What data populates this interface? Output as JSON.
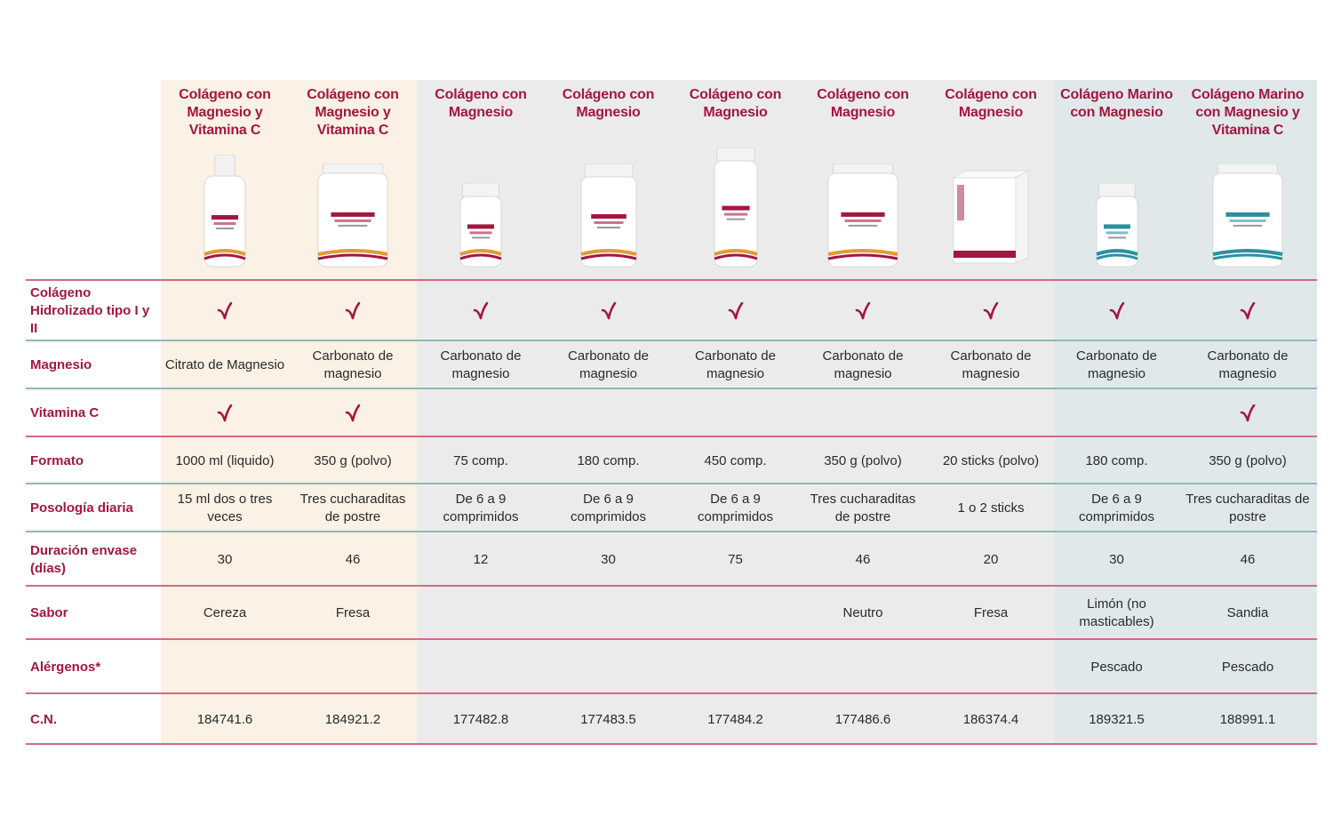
{
  "colors": {
    "accent": "#a3173e",
    "band_warm": "#fbf1e4",
    "band_gray": "#ebebeb",
    "band_blue": "#e0e8ea",
    "line_rose": "#d06c86",
    "line_teal": "#8fb9b8"
  },
  "columns": [
    {
      "title": "Colágeno con Magnesio y Vitamina C",
      "product": {
        "type": "bottle",
        "accent": "#a3173e",
        "label": "COLÁGENO"
      }
    },
    {
      "title": "Colágeno con Magnesio y Vitamina C",
      "product": {
        "type": "tub",
        "accent": "#a3173e",
        "label": "COLÁGENO"
      }
    },
    {
      "title": "Colágeno con Magnesio",
      "product": {
        "type": "small-jar",
        "accent": "#a3173e",
        "label": "COLÁGENO"
      }
    },
    {
      "title": "Colágeno con Magnesio",
      "product": {
        "type": "jar",
        "accent": "#a3173e",
        "label": "COLÁGENO"
      }
    },
    {
      "title": "Colágeno con Magnesio",
      "product": {
        "type": "tall-jar",
        "accent": "#a3173e",
        "label": "COLÁGENO"
      }
    },
    {
      "title": "Colágeno con Magnesio",
      "product": {
        "type": "tub",
        "accent": "#a3173e",
        "label": "COLÁGENO"
      }
    },
    {
      "title": "Colágeno con Magnesio",
      "product": {
        "type": "box",
        "accent": "#a3173e",
        "label": "COLÁGENO"
      }
    },
    {
      "title": "Colágeno Marino con Magnesio",
      "product": {
        "type": "small-jar",
        "accent": "#2a8fa3",
        "label": "COLÁGENO MARINO"
      }
    },
    {
      "title": "Colágeno Marino con Magnesio y Vitamina C",
      "product": {
        "type": "tub",
        "accent": "#2a8fa3",
        "label": "COLÁGENO MARINO"
      }
    }
  ],
  "rows": [
    {
      "label": "Colágeno Hidrolizado tipo I y II",
      "kind": "check",
      "values": [
        true,
        true,
        true,
        true,
        true,
        true,
        true,
        true,
        true
      ]
    },
    {
      "label": "Magnesio",
      "kind": "text",
      "values": [
        "Citrato de Magnesio",
        "Carbonato de magnesio",
        "Carbonato de magnesio",
        "Carbonato de magnesio",
        "Carbonato de magnesio",
        "Carbonato de magnesio",
        "Carbonato de magnesio",
        "Carbonato de magnesio",
        "Carbonato de magnesio"
      ]
    },
    {
      "label": "Vitamina C",
      "kind": "check",
      "values": [
        true,
        true,
        false,
        false,
        false,
        false,
        false,
        false,
        true
      ]
    },
    {
      "label": "Formato",
      "kind": "text",
      "values": [
        "1000 ml (liquido)",
        "350 g (polvo)",
        "75 comp.",
        "180 comp.",
        "450 comp.",
        "350 g (polvo)",
        "20 sticks (polvo)",
        "180 comp.",
        "350 g (polvo)"
      ]
    },
    {
      "label": "Posología diaria",
      "kind": "text",
      "values": [
        "15 ml dos o tres veces",
        "Tres cucharaditas de postre",
        "De 6 a 9 comprimidos",
        "De 6 a 9 comprimidos",
        "De 6 a 9 comprimidos",
        "Tres cucharaditas de postre",
        "1 o 2 sticks",
        "De 6 a 9 comprimidos",
        "Tres cucharaditas de postre"
      ]
    },
    {
      "label": "Duración envase (días)",
      "kind": "text",
      "values": [
        "30",
        "46",
        "12",
        "30",
        "75",
        "46",
        "20",
        "30",
        "46"
      ]
    },
    {
      "label": "Sabor",
      "kind": "text",
      "values": [
        "Cereza",
        "Fresa",
        "",
        "",
        "",
        "Neutro",
        "Fresa",
        "Limón (no masticables)",
        "Sandia"
      ]
    },
    {
      "label": "Alérgenos*",
      "kind": "text",
      "values": [
        "",
        "",
        "",
        "",
        "",
        "",
        "",
        "Pescado",
        "Pescado"
      ]
    },
    {
      "label": "C.N.",
      "kind": "text",
      "values": [
        "184741.6",
        "184921.2",
        "177482.8",
        "177483.5",
        "177484.2",
        "177486.6",
        "186374.4",
        "189321.5",
        "188991.1"
      ]
    }
  ]
}
